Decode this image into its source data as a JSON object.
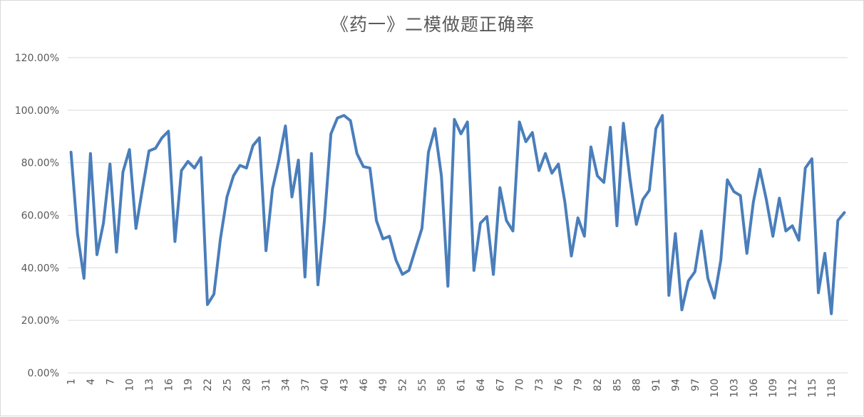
{
  "chart_data": {
    "type": "line",
    "title": "《药一》二模做题正确率",
    "xlabel": "",
    "ylabel": "",
    "ylim": [
      0,
      120
    ],
    "y_ticks": [
      "0.00%",
      "20.00%",
      "40.00%",
      "60.00%",
      "80.00%",
      "100.00%",
      "120.00%"
    ],
    "x_tick_labels": [
      "1",
      "4",
      "7",
      "10",
      "13",
      "16",
      "19",
      "22",
      "25",
      "28",
      "31",
      "34",
      "37",
      "40",
      "43",
      "46",
      "49",
      "52",
      "55",
      "58",
      "61",
      "64",
      "67",
      "70",
      "73",
      "76",
      "79",
      "82",
      "85",
      "88",
      "91",
      "94",
      "97",
      "100",
      "103",
      "106",
      "109",
      "112",
      "115",
      "118"
    ],
    "grid": true,
    "legend": "none",
    "colors": {
      "line": "#4a7ebb",
      "grid": "#d9d9d9",
      "text": "#595959"
    },
    "series": [
      {
        "x": [
          1,
          2,
          3,
          4,
          5,
          6,
          7,
          8,
          9,
          10,
          11,
          12,
          13,
          14,
          15,
          16,
          17,
          18,
          19,
          20,
          21,
          22,
          23,
          24,
          25,
          26,
          27,
          28,
          29,
          30,
          31,
          32,
          33,
          34,
          35,
          36,
          37,
          38,
          39,
          40,
          41,
          42,
          43,
          44,
          45,
          46,
          47,
          48,
          49,
          50,
          51,
          52,
          53,
          54,
          55,
          56,
          57,
          58,
          59,
          60,
          61,
          62,
          63,
          64,
          65,
          66,
          67,
          68,
          69,
          70,
          71,
          72,
          73,
          74,
          75,
          76,
          77,
          78,
          79,
          80,
          81,
          82,
          83,
          84,
          85,
          86,
          87,
          88,
          89,
          90,
          91,
          92,
          93,
          94,
          95,
          96,
          97,
          98,
          99,
          100,
          101,
          102,
          103,
          104,
          105,
          106,
          107,
          108,
          109,
          110,
          111,
          112,
          113,
          114,
          115,
          116,
          117,
          118,
          119,
          120
        ],
        "values": [
          84,
          53,
          36,
          83.5,
          45,
          57,
          79.5,
          46,
          76.5,
          85,
          55,
          70,
          84.5,
          85.5,
          89.5,
          92,
          50,
          77,
          80.5,
          78,
          82,
          26,
          30,
          51,
          67,
          75,
          79,
          78,
          86.5,
          89.5,
          46.5,
          70,
          81,
          94,
          67,
          81,
          36.5,
          83.5,
          33.5,
          58,
          91,
          97,
          98,
          96,
          83.5,
          78.5,
          78,
          58,
          51,
          52,
          43,
          37.5,
          39,
          47,
          55,
          84,
          93,
          75,
          33,
          96.5,
          91,
          95.5,
          39,
          57,
          59.5,
          37.5,
          70.5,
          58,
          54,
          95.5,
          88,
          91.5,
          77,
          83.5,
          76,
          79.5,
          65,
          44.5,
          59,
          52,
          86,
          75,
          72.5,
          93.5,
          56,
          95,
          74,
          56.5,
          66,
          69.5,
          93,
          98,
          29.5,
          53,
          24,
          35,
          38.5,
          54,
          36,
          28.5,
          43,
          73.5,
          69,
          67.5,
          45.5,
          65,
          77.5,
          66,
          52,
          66.5,
          54,
          56,
          50.5,
          78,
          81.5,
          30.5,
          45.5,
          22.5,
          58,
          61
        ]
      }
    ]
  }
}
